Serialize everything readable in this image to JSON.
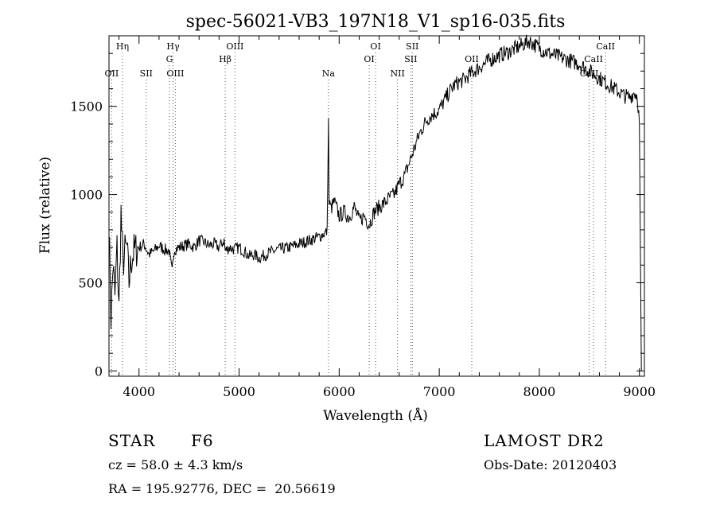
{
  "chart_data": {
    "type": "line",
    "title": "spec-56021-VB3_197N18_V1_sp16-035.fits",
    "xlabel": "Wavelength (Å)",
    "ylabel": "Flux (relative)",
    "xlim": [
      3700,
      9050
    ],
    "ylim": [
      -30,
      1900
    ],
    "x_ticks": [
      4000,
      5000,
      6000,
      7000,
      8000,
      9000
    ],
    "y_ticks": [
      0,
      500,
      1000,
      1500
    ],
    "series": [
      {
        "x": [
          3700,
          3720,
          3740,
          3760,
          3780,
          3800,
          3820,
          3840,
          3860,
          3880,
          3900,
          3920,
          3950,
          4000,
          4050,
          4100,
          4150,
          4200,
          4250,
          4300,
          4330,
          4350,
          4400,
          4450,
          4500,
          4550,
          4600,
          4650,
          4700,
          4750,
          4800,
          4850,
          4861,
          4900,
          4950,
          5000,
          5050,
          5100,
          5150,
          5200,
          5300,
          5400,
          5500,
          5600,
          5700,
          5800,
          5850,
          5880,
          5893,
          5900,
          5920,
          5950,
          6000,
          6050,
          6100,
          6150,
          6200,
          6250,
          6300,
          6350,
          6400,
          6450,
          6500,
          6550,
          6600,
          6650,
          6700,
          6750,
          6800,
          6850,
          6900,
          6950,
          7000,
          7050,
          7100,
          7150,
          7200,
          7250,
          7300,
          7400,
          7500,
          7600,
          7700,
          7800,
          7900,
          8000,
          8100,
          8200,
          8300,
          8400,
          8500,
          8550,
          8600,
          8650,
          8700,
          8750,
          8800,
          8850,
          8900,
          8950,
          8980,
          9000
        ],
        "y": [
          850,
          300,
          600,
          420,
          700,
          350,
          900,
          600,
          680,
          700,
          500,
          620,
          680,
          700,
          720,
          660,
          680,
          710,
          690,
          680,
          560,
          690,
          700,
          710,
          720,
          700,
          740,
          730,
          710,
          720,
          700,
          740,
          680,
          700,
          690,
          700,
          680,
          650,
          660,
          640,
          670,
          690,
          700,
          720,
          740,
          760,
          780,
          790,
          1420,
          950,
          920,
          960,
          880,
          900,
          870,
          930,
          850,
          880,
          830,
          900,
          930,
          950,
          980,
          1000,
          1060,
          1100,
          1180,
          1260,
          1340,
          1400,
          1440,
          1460,
          1480,
          1530,
          1580,
          1620,
          1640,
          1650,
          1680,
          1720,
          1760,
          1790,
          1810,
          1840,
          1870,
          1830,
          1800,
          1780,
          1760,
          1740,
          1700,
          1680,
          1660,
          1640,
          1620,
          1600,
          1580,
          1560,
          1550,
          1580,
          1560,
          1400
        ]
      }
    ],
    "lines_top": [
      {
        "label": "Hη",
        "x": 3835
      },
      {
        "label": "Hγ",
        "x": 4340
      },
      {
        "label": "OIII",
        "x": 4959
      },
      {
        "label": "OI",
        "x": 6364
      },
      {
        "label": "SII",
        "x": 6731
      },
      {
        "label": "CaII",
        "x": 8662
      }
    ],
    "lines_mid": [
      {
        "label": "G",
        "x": 4304
      },
      {
        "label": "Hβ",
        "x": 4861
      },
      {
        "label": "OI",
        "x": 6300
      },
      {
        "label": "SII",
        "x": 6716
      },
      {
        "label": "OII",
        "x": 7325
      },
      {
        "label": "CaII",
        "x": 8542
      }
    ],
    "lines_low": [
      {
        "label": "OII",
        "x": 3727
      },
      {
        "label": "SII",
        "x": 4072
      },
      {
        "label": "OIII",
        "x": 4363
      },
      {
        "label": "Na",
        "x": 5893
      },
      {
        "label": "NII",
        "x": 6583
      },
      {
        "label": "CaII",
        "x": 8498
      }
    ],
    "grid": false,
    "legend": "none"
  },
  "info": {
    "object_class": "STAR",
    "subclass": "F6",
    "survey": "LAMOST DR2",
    "cz": "cz = 58.0 ± 4.3 km/s",
    "obs_date": "Obs-Date: 20120403",
    "coords": "RA = 195.92776, DEC =  20.56619"
  }
}
